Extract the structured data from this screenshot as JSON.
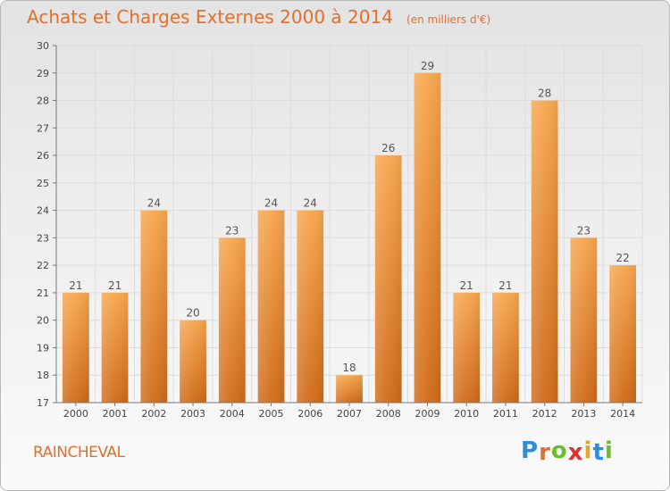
{
  "header": {
    "title": "Achats et Charges Externes 2000 à 2014",
    "unit": "(en milliers d'€)"
  },
  "footer": {
    "city": "RAINCHEVAL",
    "logo_letters": [
      "P",
      "r",
      "o",
      "x",
      "i",
      "t",
      "i"
    ],
    "logo_colors": [
      "#2f8fd6",
      "#e2702c",
      "#6cbd2c",
      "#e2302c",
      "#e2a82c",
      "#2f8fd6",
      "#6cbd2c"
    ]
  },
  "chart_data": {
    "type": "bar",
    "title": "Achats et Charges Externes 2000 à 2014",
    "subtitle": "(en milliers d'€)",
    "xlabel": "",
    "ylabel": "",
    "categories": [
      "2000",
      "2001",
      "2002",
      "2003",
      "2004",
      "2005",
      "2006",
      "2007",
      "2008",
      "2009",
      "2010",
      "2011",
      "2012",
      "2013",
      "2014"
    ],
    "values": [
      21,
      21,
      24,
      20,
      23,
      24,
      24,
      18,
      26,
      29,
      21,
      21,
      28,
      23,
      22
    ],
    "ylim": [
      17,
      30
    ],
    "yticks": [
      17,
      18,
      19,
      20,
      21,
      22,
      23,
      24,
      25,
      26,
      27,
      28,
      29,
      30
    ],
    "grid": true,
    "data_labels": true,
    "colors": {
      "bar_top": "#f7a64e",
      "bar_bottom": "#cf6a18",
      "label": "#555555",
      "grid": "#dcdcdc"
    }
  }
}
